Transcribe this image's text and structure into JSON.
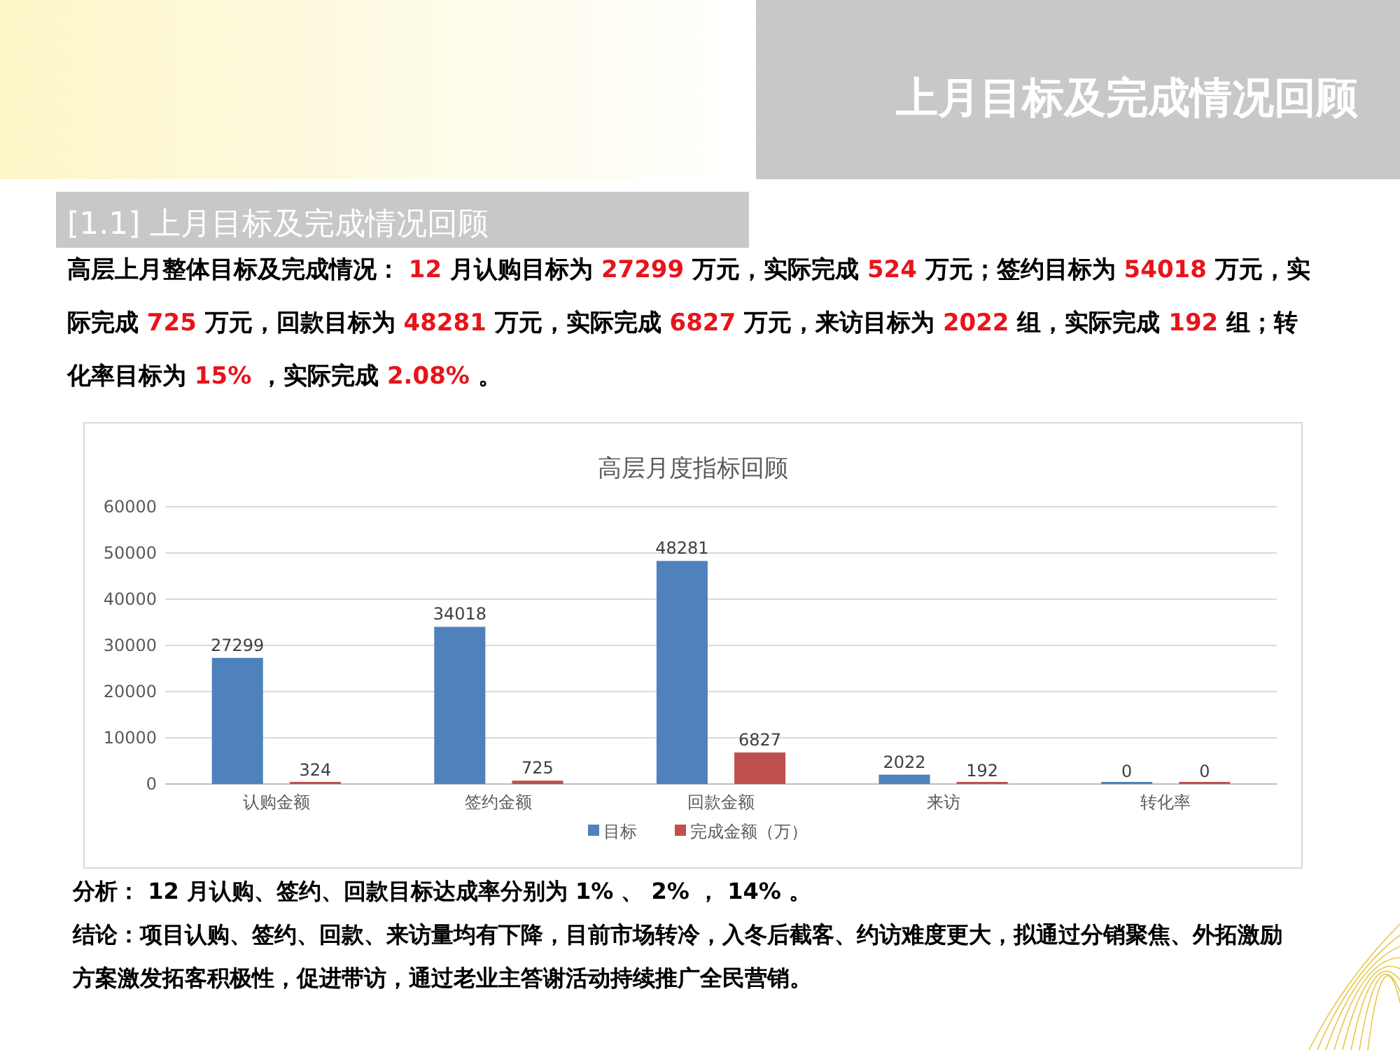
{
  "chart_data": {
    "type": "bar",
    "title": "高层月度指标回顾",
    "categories": [
      "认购金额",
      "签约金额",
      "回款金额",
      "来访",
      "转化率"
    ],
    "series": [
      {
        "name": "目标",
        "color": "#4f81bd",
        "values": [
          27299,
          34018,
          48281,
          2022,
          0
        ]
      },
      {
        "name": "完成金额（万）",
        "color": "#c0504d",
        "values": [
          324,
          725,
          6827,
          192,
          0
        ]
      }
    ],
    "ylim": [
      0,
      60000
    ],
    "yticks": [
      0,
      10000,
      20000,
      30000,
      40000,
      50000,
      60000
    ],
    "grid": "y",
    "legend": "bottom",
    "data_labels": true,
    "annotations": [
      "上月目标及完成情况回顾",
      "[1.1] 上月目标及完成情况回顾",
      "高层上月整体目标及完成情况： 12 月认购目标为 27299 万元，实际完成 524 万元；签约目标为 54018 万元，实际完成 725 万元，回款目标为 48281 万元，实际完成 6827 万元，来访目标为 2022 组，实际完成 192 组；转化率目标为 15% ，实际完成 2.08% 。",
      "分析： 12 月认购、签约、回款目标达成率分别为 1% 、 2% ， 14% 。",
      "结论：项目认购、签约、回款、来访量均有下降，目前市场转冷，入冬后截客、约访难度更大，拟通过分销聚焦、外拓激励方案激发拓客积极性，促进带访，通过老业主答谢活动持续推广全民营销。"
    ]
  }
}
